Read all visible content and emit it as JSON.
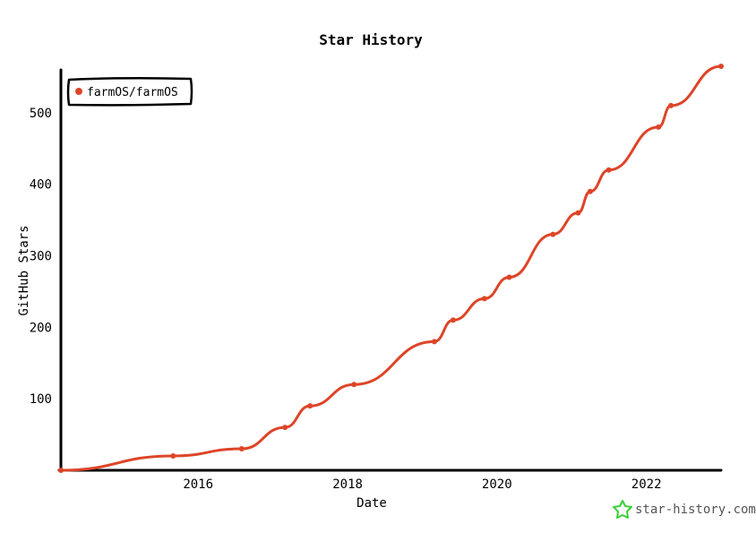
{
  "colors": {
    "series": "#dd4528",
    "axis": "#000000",
    "brand": "#3ccf3a",
    "brand_text": "#555555"
  },
  "brand": {
    "icon": "star-icon",
    "text": "star-history.com"
  },
  "chart_data": {
    "type": "line",
    "title": "Star History",
    "xlabel": "Date",
    "ylabel": "GitHub Stars",
    "xlim": [
      "2014-03-01",
      "2023-01-01"
    ],
    "ylim": [
      0,
      560
    ],
    "x_ticks": [
      "2016",
      "2018",
      "2020",
      "2022"
    ],
    "y_ticks": [
      "100",
      "200",
      "300",
      "400",
      "500"
    ],
    "legend": {
      "position": "top-left",
      "entries": [
        "farmOS/farmOS"
      ]
    },
    "grid": false,
    "series": [
      {
        "name": "farmOS/farmOS",
        "color": "#dd4528",
        "points": [
          [
            "2014-03-01",
            0
          ],
          [
            "2015-09-01",
            20
          ],
          [
            "2016-08-01",
            30
          ],
          [
            "2017-03-01",
            60
          ],
          [
            "2017-07-01",
            90
          ],
          [
            "2018-02-01",
            120
          ],
          [
            "2019-03-01",
            180
          ],
          [
            "2019-06-01",
            210
          ],
          [
            "2019-11-01",
            240
          ],
          [
            "2020-03-01",
            270
          ],
          [
            "2020-10-01",
            330
          ],
          [
            "2021-02-01",
            360
          ],
          [
            "2021-04-01",
            390
          ],
          [
            "2021-07-01",
            420
          ],
          [
            "2022-03-01",
            480
          ],
          [
            "2022-05-01",
            510
          ],
          [
            "2023-01-01",
            565
          ]
        ]
      }
    ]
  }
}
